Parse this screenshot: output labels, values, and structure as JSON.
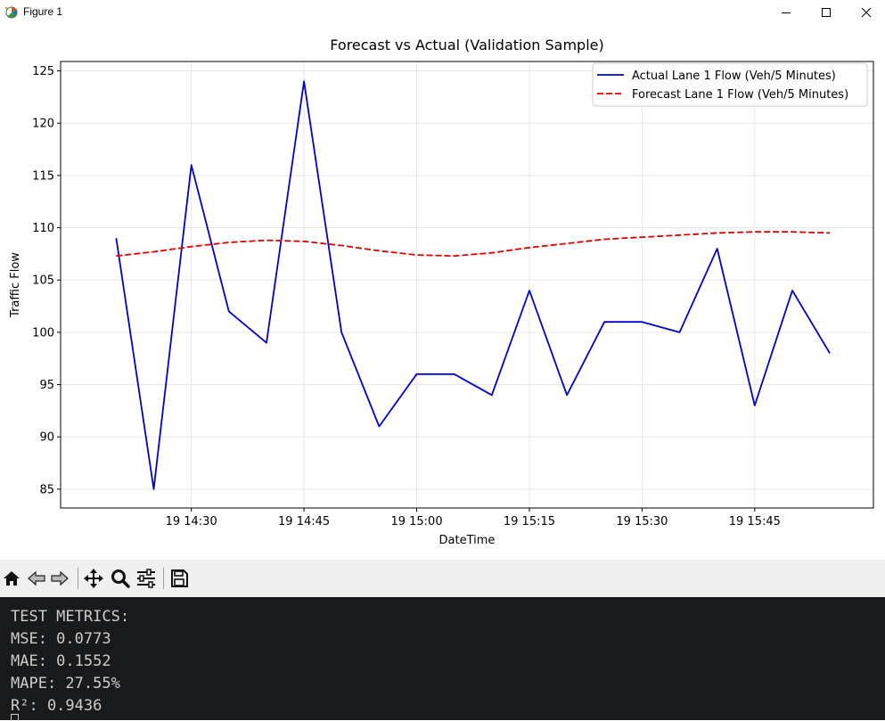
{
  "window": {
    "title": "Figure 1",
    "icon": "matplotlib-figure-icon",
    "controls": [
      "minimize-icon",
      "maximize-icon",
      "close-icon"
    ]
  },
  "toolbar": {
    "buttons": [
      {
        "name": "home-icon",
        "label": "Home"
      },
      {
        "name": "back-icon",
        "label": "Back"
      },
      {
        "name": "forward-icon",
        "label": "Forward"
      },
      {
        "name": "pan-icon",
        "label": "Pan"
      },
      {
        "name": "zoom-icon",
        "label": "Zoom"
      },
      {
        "name": "configure-subplots-icon",
        "label": "Configure subplots"
      },
      {
        "name": "save-icon",
        "label": "Save"
      }
    ]
  },
  "chart_data": {
    "type": "line",
    "title": "Forecast vs Actual (Validation Sample)",
    "xlabel": "DateTime",
    "ylabel": "Traffic Flow",
    "x": [
      "14:20",
      "14:25",
      "14:30",
      "14:35",
      "14:40",
      "14:45",
      "14:50",
      "14:55",
      "15:00",
      "15:05",
      "15:10",
      "15:15",
      "15:20",
      "15:25",
      "15:30",
      "15:35",
      "15:40",
      "15:45",
      "15:50",
      "15:55"
    ],
    "xticks": [
      "19 14:30",
      "19 14:45",
      "19 15:00",
      "19 15:15",
      "19 15:30",
      "19 15:45"
    ],
    "xlim": [
      "14:12.6",
      "16:00.8"
    ],
    "ylim": [
      83.2,
      125.9
    ],
    "yticks": [
      85,
      90,
      95,
      100,
      105,
      110,
      115,
      120,
      125
    ],
    "grid": true,
    "legend_position": "upper right",
    "series": [
      {
        "name": "Actual Lane 1 Flow (Veh/5 Minutes)",
        "color": "#0000cc",
        "style": "solid",
        "values": [
          109,
          85,
          116,
          102,
          99,
          124,
          100,
          91,
          96,
          96,
          94,
          104,
          94,
          101,
          101,
          100,
          108,
          93,
          104,
          98
        ]
      },
      {
        "name": "Forecast Lane 1 Flow (Veh/5 Minutes)",
        "color": "#dd0000",
        "style": "dashed",
        "values": [
          107.3,
          107.7,
          108.2,
          108.6,
          108.8,
          108.7,
          108.3,
          107.8,
          107.4,
          107.3,
          107.6,
          108.1,
          108.5,
          108.9,
          109.1,
          109.3,
          109.5,
          109.6,
          109.6,
          109.5
        ]
      }
    ]
  },
  "console": {
    "lines": [
      "TEST METRICS:",
      "MSE: 0.0773",
      "MAE: 0.1552",
      "MAPE: 27.55%",
      "R²: 0.9436"
    ]
  }
}
